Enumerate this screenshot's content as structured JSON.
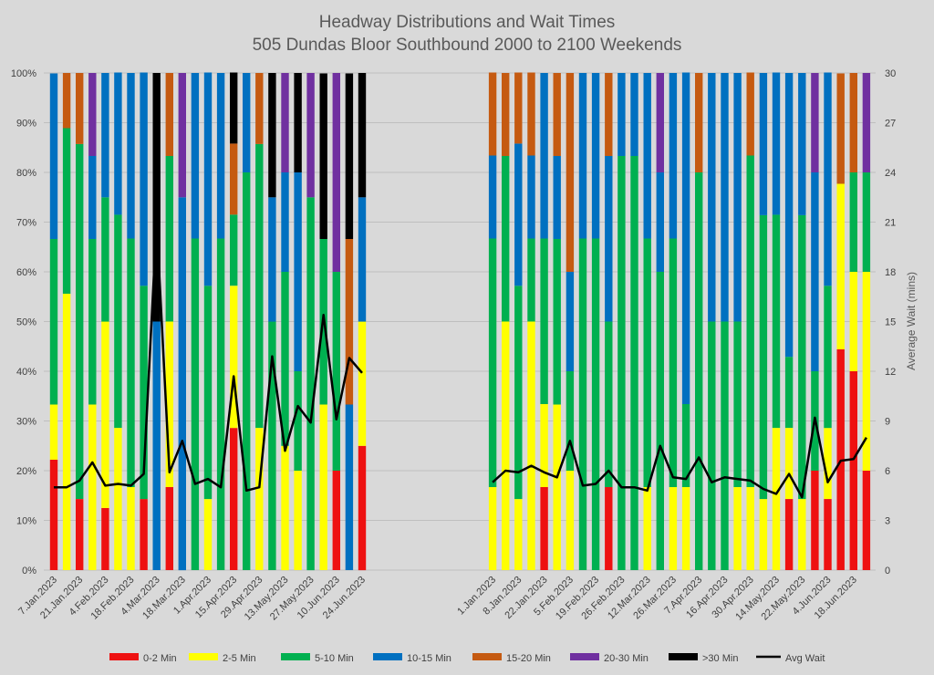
{
  "chart_data": {
    "type": "bar",
    "subtype": "stacked-percent-bar-with-line",
    "title": [
      "Headway Distributions and Wait Times",
      "505 Dundas  Bloor Southbound 2000 to 2100 Weekends"
    ],
    "xlabel": "",
    "ylabel_left": "",
    "ylabel_right": "Average Wait (mins)",
    "ylim_left": [
      0,
      100
    ],
    "ylim_right": [
      0,
      30
    ],
    "yticks_left": [
      "0%",
      "10%",
      "20%",
      "30%",
      "40%",
      "50%",
      "60%",
      "70%",
      "80%",
      "90%",
      "100%"
    ],
    "yticks_right": [
      "0",
      "3",
      "6",
      "9",
      "12",
      "15",
      "18",
      "21",
      "24",
      "27",
      "30"
    ],
    "grid": true,
    "legend_position": "bottom",
    "colors": {
      "0-2 Min": "#ee1111",
      "2-5 Min": "#ffff00",
      "5-10 Min": "#00b050",
      "10-15 Min": "#0070c0",
      "15-20 Min": "#c55a11",
      "20-30 Min": "#7030a0",
      ">30 Min": "#000000",
      "Avg Wait": "#000000"
    },
    "series_names": [
      "0-2 Min",
      "2-5 Min",
      "5-10 Min",
      "10-15 Min",
      "15-20 Min",
      "20-30 Min",
      ">30 Min"
    ],
    "line_series_name": "Avg Wait",
    "panels": [
      {
        "x_labels": [
          "7.Jan.2023",
          "21.Jan.2023",
          "4.Feb.2023",
          "18.Feb.2023",
          "4.Mar.2023",
          "18.Mar.2023",
          "1.Apr.2023",
          "15.Apr.2023",
          "29.Apr.2023",
          "13.May.2023",
          "27.May.2023",
          "10.Jun.2023",
          "24.Jun.2023"
        ],
        "bars": [
          {
            "values": [
              22.2,
              11.1,
              33.3,
              33.3,
              0,
              0,
              0
            ],
            "avg_wait": 5.0
          },
          {
            "values": [
              0,
              55.6,
              33.3,
              0,
              11.1,
              0,
              0
            ],
            "avg_wait": 5.0
          },
          {
            "values": [
              14.3,
              0,
              71.4,
              0,
              14.3,
              0,
              0
            ],
            "avg_wait": 5.4
          },
          {
            "values": [
              0,
              33.3,
              33.3,
              16.7,
              0,
              16.7,
              0
            ],
            "avg_wait": 6.5
          },
          {
            "values": [
              12.5,
              37.5,
              25,
              25,
              0,
              0,
              0
            ],
            "avg_wait": 5.1
          },
          {
            "values": [
              0,
              28.6,
              42.9,
              28.6,
              0,
              0,
              0
            ],
            "avg_wait": 5.2
          },
          {
            "values": [
              0,
              16.7,
              50,
              33.3,
              0,
              0,
              0
            ],
            "avg_wait": 5.1
          },
          {
            "values": [
              14.3,
              0,
              42.9,
              42.9,
              0,
              0,
              0
            ],
            "avg_wait": 5.8
          },
          {
            "values": [
              0,
              0,
              0,
              50,
              0,
              0,
              50
            ],
            "avg_wait": 21.0
          },
          {
            "values": [
              16.7,
              33.3,
              33.3,
              0,
              16.7,
              0,
              0
            ],
            "avg_wait": 5.9
          },
          {
            "values": [
              0,
              0,
              0,
              75,
              0,
              25,
              0
            ],
            "avg_wait": 7.8
          },
          {
            "values": [
              0,
              0,
              66.7,
              33.3,
              0,
              0,
              0
            ],
            "avg_wait": 5.2
          },
          {
            "values": [
              0,
              14.3,
              42.9,
              42.9,
              0,
              0,
              0
            ],
            "avg_wait": 5.5
          },
          {
            "values": [
              0,
              0,
              66.7,
              33.3,
              0,
              0,
              0
            ],
            "avg_wait": 5.0
          },
          {
            "values": [
              28.6,
              28.6,
              14.3,
              0,
              14.3,
              0,
              14.3
            ],
            "avg_wait": 11.7
          },
          {
            "values": [
              0,
              0,
              80,
              20,
              0,
              0,
              0
            ],
            "avg_wait": 4.8
          },
          {
            "values": [
              0,
              28.6,
              57.1,
              0,
              14.3,
              0,
              0
            ],
            "avg_wait": 5.0
          },
          {
            "values": [
              0,
              0,
              50,
              25,
              0,
              0,
              25
            ],
            "avg_wait": 12.9
          },
          {
            "values": [
              0,
              25,
              35,
              20,
              0,
              20,
              0
            ],
            "avg_wait": 7.2
          },
          {
            "values": [
              0,
              20,
              20,
              40,
              0,
              0,
              20
            ],
            "avg_wait": 9.9
          },
          {
            "values": [
              0,
              0,
              75,
              0,
              0,
              25,
              0
            ],
            "avg_wait": 8.9
          },
          {
            "values": [
              0,
              33.3,
              33.3,
              0,
              0,
              0,
              33.3
            ],
            "avg_wait": 15.4
          },
          {
            "values": [
              20,
              0,
              40,
              0,
              0,
              40,
              0
            ],
            "avg_wait": 9.1
          },
          {
            "values": [
              0,
              0,
              0,
              33.3,
              33.3,
              0,
              33.3
            ],
            "avg_wait": 12.8
          },
          {
            "values": [
              25,
              25,
              0,
              25,
              0,
              0,
              25
            ],
            "avg_wait": 11.9
          }
        ]
      },
      {
        "x_labels": [
          "1.Jan.2023",
          "8.Jan.2023",
          "22.Jan.2023",
          "5.Feb.2023",
          "19.Feb.2023",
          "26.Feb.2023",
          "12.Mar.2023",
          "26.Mar.2023",
          "7.Apr.2023",
          "16.Apr.2023",
          "30.Apr.2023",
          "14.May.2023",
          "22.May.2023",
          "4.Jun.2023",
          "18.Jun.2023"
        ],
        "bars": [
          {
            "values": [
              0,
              16.7,
              50,
              16.7,
              16.7,
              0,
              0
            ],
            "avg_wait": 5.3
          },
          {
            "values": [
              0,
              50,
              33.3,
              0,
              16.7,
              0,
              0
            ],
            "avg_wait": 6.0
          },
          {
            "values": [
              0,
              14.3,
              42.9,
              28.6,
              14.3,
              0,
              0
            ],
            "avg_wait": 5.9
          },
          {
            "values": [
              0,
              50,
              16.7,
              16.7,
              16.7,
              0,
              0
            ],
            "avg_wait": 6.3
          },
          {
            "values": [
              16.7,
              16.7,
              33.3,
              33.3,
              0,
              0,
              0
            ],
            "avg_wait": 5.9
          },
          {
            "values": [
              0,
              33.3,
              33.3,
              16.7,
              16.7,
              0,
              0
            ],
            "avg_wait": 5.6
          },
          {
            "values": [
              0,
              20,
              20,
              20,
              40,
              0,
              0
            ],
            "avg_wait": 7.8
          },
          {
            "values": [
              0,
              0,
              66.7,
              33.3,
              0,
              0,
              0
            ],
            "avg_wait": 5.1
          },
          {
            "values": [
              0,
              0,
              66.7,
              33.3,
              0,
              0,
              0
            ],
            "avg_wait": 5.2
          },
          {
            "values": [
              16.7,
              0,
              33.3,
              33.3,
              16.7,
              0,
              0
            ],
            "avg_wait": 6.0
          },
          {
            "values": [
              0,
              0,
              83.3,
              16.7,
              0,
              0,
              0
            ],
            "avg_wait": 5.0
          },
          {
            "values": [
              0,
              0,
              83.3,
              16.7,
              0,
              0,
              0
            ],
            "avg_wait": 5.0
          },
          {
            "values": [
              0,
              16.7,
              50,
              33.3,
              0,
              0,
              0
            ],
            "avg_wait": 4.8
          },
          {
            "values": [
              0,
              0,
              60,
              20,
              0,
              20,
              0
            ],
            "avg_wait": 7.5
          },
          {
            "values": [
              0,
              16.7,
              50,
              33.3,
              0,
              0,
              0
            ],
            "avg_wait": 5.6
          },
          {
            "values": [
              0,
              16.7,
              16.7,
              66.7,
              0,
              0,
              0
            ],
            "avg_wait": 5.5
          },
          {
            "values": [
              0,
              0,
              80,
              0,
              20,
              0,
              0
            ],
            "avg_wait": 6.8
          },
          {
            "values": [
              0,
              0,
              50,
              50,
              0,
              0,
              0
            ],
            "avg_wait": 5.3
          },
          {
            "values": [
              0,
              0,
              50,
              50,
              0,
              0,
              0
            ],
            "avg_wait": 5.6
          },
          {
            "values": [
              0,
              16.7,
              33.3,
              50,
              0,
              0,
              0
            ],
            "avg_wait": 5.5
          },
          {
            "values": [
              0,
              16.7,
              66.7,
              0,
              16.7,
              0,
              0
            ],
            "avg_wait": 5.4
          },
          {
            "values": [
              0,
              14.3,
              57.1,
              28.6,
              0,
              0,
              0
            ],
            "avg_wait": 4.9
          },
          {
            "values": [
              0,
              28.6,
              42.9,
              28.6,
              0,
              0,
              0
            ],
            "avg_wait": 4.6
          },
          {
            "values": [
              14.3,
              14.3,
              14.3,
              57.1,
              0,
              0,
              0
            ],
            "avg_wait": 5.8
          },
          {
            "values": [
              0,
              14.3,
              57.1,
              28.6,
              0,
              0,
              0
            ],
            "avg_wait": 4.4
          },
          {
            "values": [
              20,
              0,
              20,
              40,
              0,
              20,
              0
            ],
            "avg_wait": 9.2
          },
          {
            "values": [
              14.3,
              14.3,
              28.6,
              42.9,
              0,
              0,
              0
            ],
            "avg_wait": 5.3
          },
          {
            "values": [
              44.4,
              33.3,
              0,
              0,
              22.2,
              0,
              0
            ],
            "avg_wait": 6.6
          },
          {
            "values": [
              40,
              20,
              20,
              0,
              20,
              0,
              0
            ],
            "avg_wait": 6.7
          },
          {
            "values": [
              20,
              40,
              20,
              0,
              0,
              20,
              0
            ],
            "avg_wait": 8.0
          }
        ]
      }
    ]
  }
}
